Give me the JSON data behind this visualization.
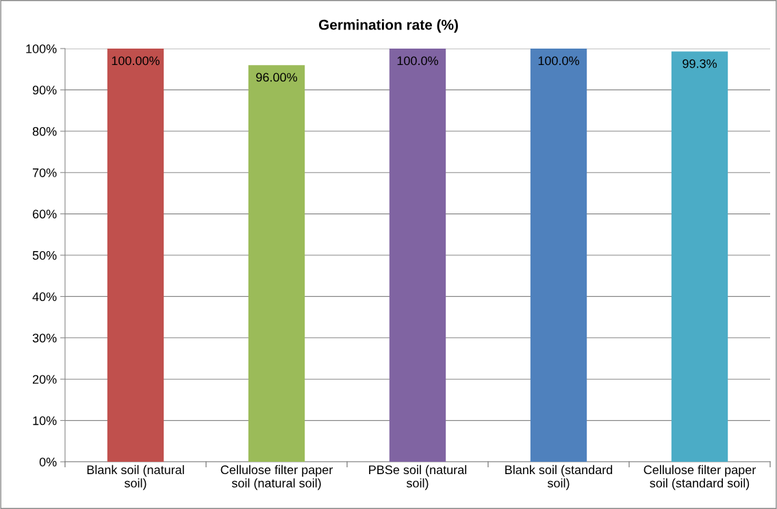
{
  "chart_data": {
    "type": "bar",
    "title": "Germination rate (%)",
    "categories": [
      "Blank soil (natural\nsoil)",
      "Cellulose filter paper\nsoil (natural soil)",
      "PBSe soil (natural\nsoil)",
      "Blank soil (standard\nsoil)",
      "Cellulose filter paper\nsoil (standard soil)"
    ],
    "values": [
      100,
      96,
      100,
      100,
      99.3
    ],
    "colors": [
      "#c0504d",
      "#9bbb59",
      "#8064a2",
      "#4f81bd",
      "#4bacc6"
    ],
    "value_labels": [
      "100.00%",
      "96.00%",
      "100.0%",
      "100.0%",
      "99.3%"
    ],
    "ylim": [
      0,
      100
    ],
    "yticks": [
      {
        "value": 0,
        "label": "0%"
      },
      {
        "value": 10,
        "label": "10%"
      },
      {
        "value": 20,
        "label": "20%"
      },
      {
        "value": 30,
        "label": "30%"
      },
      {
        "value": 40,
        "label": "40%"
      },
      {
        "value": 50,
        "label": "50%"
      },
      {
        "value": 60,
        "label": "60%"
      },
      {
        "value": 70,
        "label": "70%"
      },
      {
        "value": 80,
        "label": "80%"
      },
      {
        "value": 90,
        "label": "90%"
      },
      {
        "value": 100,
        "label": "100%"
      }
    ],
    "grid": "y",
    "legend": false
  }
}
